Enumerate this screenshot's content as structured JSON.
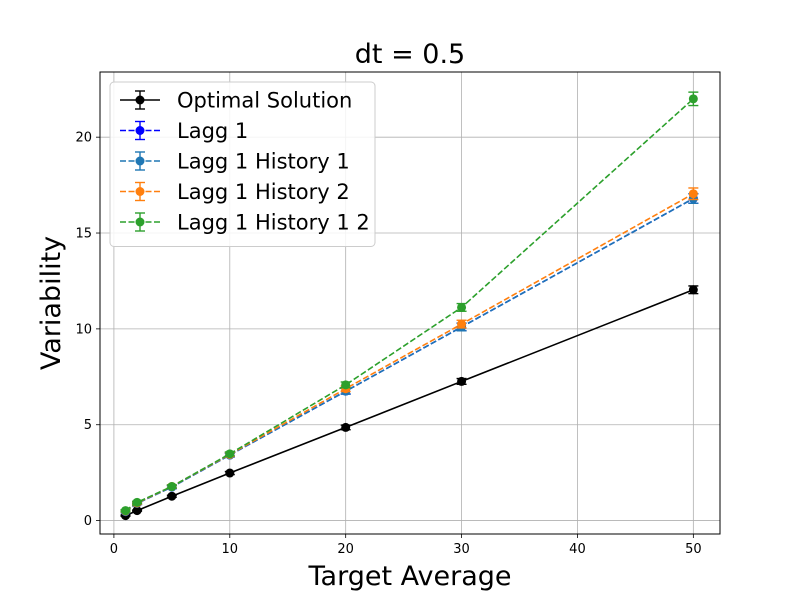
{
  "chart_data": {
    "type": "line",
    "title": "dt = 0.5",
    "xlabel": "Target Average",
    "ylabel": "Variability",
    "xlim": [
      -1.2,
      52.3
    ],
    "ylim": [
      -0.7,
      23.4
    ],
    "xticks": [
      0,
      10,
      20,
      30,
      40,
      50
    ],
    "yticks": [
      0,
      5,
      10,
      15,
      20
    ],
    "grid": true,
    "legend_position": "upper-left",
    "x": [
      1,
      2,
      5,
      10,
      20,
      30,
      50
    ],
    "series": [
      {
        "name": "Optimal Solution",
        "color": "#000000",
        "linestyle": "solid",
        "values": [
          0.26,
          0.52,
          1.27,
          2.48,
          4.86,
          7.26,
          12.04
        ],
        "errors": [
          0.03,
          0.03,
          0.05,
          0.08,
          0.12,
          0.15,
          0.2
        ]
      },
      {
        "name": "Lagg 1",
        "color": "#0000ff",
        "linestyle": "dashed",
        "values": [
          0.47,
          0.9,
          1.75,
          3.42,
          6.75,
          10.1,
          16.8
        ],
        "errors": [
          0.05,
          0.06,
          0.08,
          0.1,
          0.15,
          0.2,
          0.25
        ]
      },
      {
        "name": "Lagg 1 History 1",
        "color": "#1f77b4",
        "linestyle": "dashed",
        "values": [
          0.47,
          0.9,
          1.75,
          3.42,
          6.75,
          10.1,
          16.8
        ],
        "errors": [
          0.05,
          0.06,
          0.08,
          0.1,
          0.15,
          0.2,
          0.25
        ]
      },
      {
        "name": "Lagg 1 History 2",
        "color": "#ff7f0e",
        "linestyle": "dashed",
        "values": [
          0.5,
          0.92,
          1.78,
          3.45,
          6.88,
          10.25,
          17.05
        ],
        "errors": [
          0.05,
          0.06,
          0.08,
          0.1,
          0.15,
          0.2,
          0.3
        ]
      },
      {
        "name": "Lagg 1 History 1 2",
        "color": "#2ca02c",
        "linestyle": "dashed",
        "values": [
          0.52,
          0.95,
          1.78,
          3.48,
          7.08,
          11.12,
          22.0
        ],
        "errors": [
          0.05,
          0.06,
          0.08,
          0.1,
          0.15,
          0.2,
          0.35
        ]
      }
    ]
  }
}
